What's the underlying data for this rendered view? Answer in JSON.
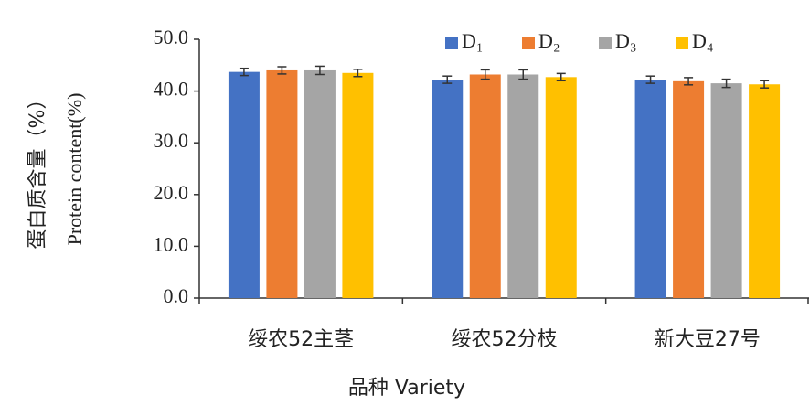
{
  "chart_data": {
    "type": "bar",
    "y_label": [
      "蛋白质含量（%）",
      "Protein content(%)"
    ],
    "x_label": "品种  Variety",
    "categories": [
      "绥农52主茎",
      "绥农52分枝",
      "新大豆27号"
    ],
    "series": [
      {
        "name": "D₁",
        "color": "#4472c4",
        "values": [
          43.7,
          42.2,
          42.2
        ],
        "errors": [
          0.7,
          0.7,
          0.7
        ]
      },
      {
        "name": "D₂",
        "color": "#ed7d31",
        "values": [
          44.0,
          43.2,
          41.9
        ],
        "errors": [
          0.7,
          0.9,
          0.7
        ]
      },
      {
        "name": "D₃",
        "color": "#a5a5a5",
        "values": [
          44.0,
          43.2,
          41.5
        ],
        "errors": [
          0.8,
          0.9,
          0.8
        ]
      },
      {
        "name": "D₄",
        "color": "#ffc000",
        "values": [
          43.5,
          42.7,
          41.3
        ],
        "errors": [
          0.7,
          0.7,
          0.7
        ]
      }
    ],
    "ylim": [
      0,
      50
    ],
    "yticks": [
      {
        "value": 0,
        "label": "0.0"
      },
      {
        "value": 10,
        "label": "10.0"
      },
      {
        "value": 20,
        "label": "20.0"
      },
      {
        "value": 30,
        "label": "30.0"
      },
      {
        "value": 40,
        "label": "40.0"
      },
      {
        "value": 50,
        "label": "50.0"
      }
    ],
    "legend": "top-right"
  }
}
